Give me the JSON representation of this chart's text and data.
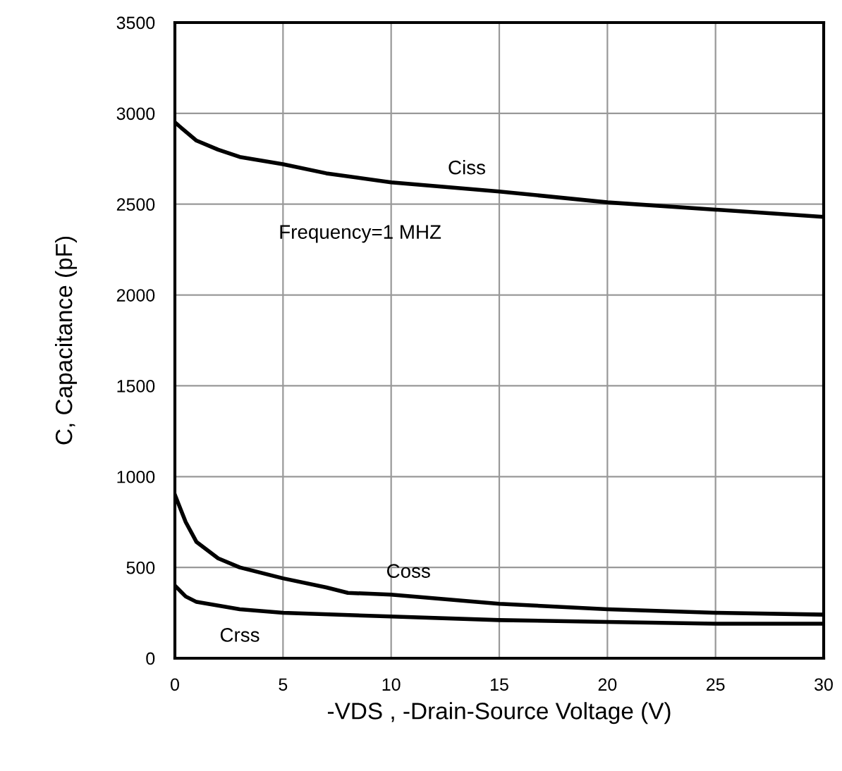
{
  "chart_data": {
    "type": "line",
    "xlabel": "-VDS , -Drain-Source Voltage (V)",
    "ylabel": "C, Capacitance (pF)",
    "xlim": [
      0,
      30
    ],
    "xticks": [
      0,
      5,
      10,
      15,
      20,
      25,
      30
    ],
    "ylim": [
      0,
      3500
    ],
    "yticks": [
      0,
      500,
      1000,
      1500,
      2000,
      2500,
      3000,
      3500
    ],
    "grid": true,
    "legend": false,
    "marker": "none",
    "line_style": "solid",
    "annotations": [
      "Frequency=1 MHZ"
    ],
    "series": [
      {
        "name": "Ciss",
        "color": "#000000",
        "x": [
          0,
          1,
          2,
          3,
          5,
          7,
          10,
          15,
          20,
          25,
          30
        ],
        "values": [
          2950,
          2850,
          2800,
          2760,
          2720,
          2670,
          2620,
          2570,
          2510,
          2470,
          2430
        ]
      },
      {
        "name": "Coss",
        "color": "#000000",
        "x": [
          0,
          0.5,
          1,
          2,
          3,
          5,
          7,
          8,
          10,
          15,
          20,
          25,
          30
        ],
        "values": [
          900,
          750,
          640,
          550,
          500,
          440,
          390,
          360,
          350,
          300,
          270,
          250,
          240
        ]
      },
      {
        "name": "Crss",
        "color": "#000000",
        "x": [
          0,
          0.5,
          1,
          3,
          5,
          10,
          15,
          20,
          25,
          30
        ],
        "values": [
          400,
          340,
          310,
          270,
          250,
          230,
          210,
          200,
          190,
          190
        ]
      }
    ]
  }
}
